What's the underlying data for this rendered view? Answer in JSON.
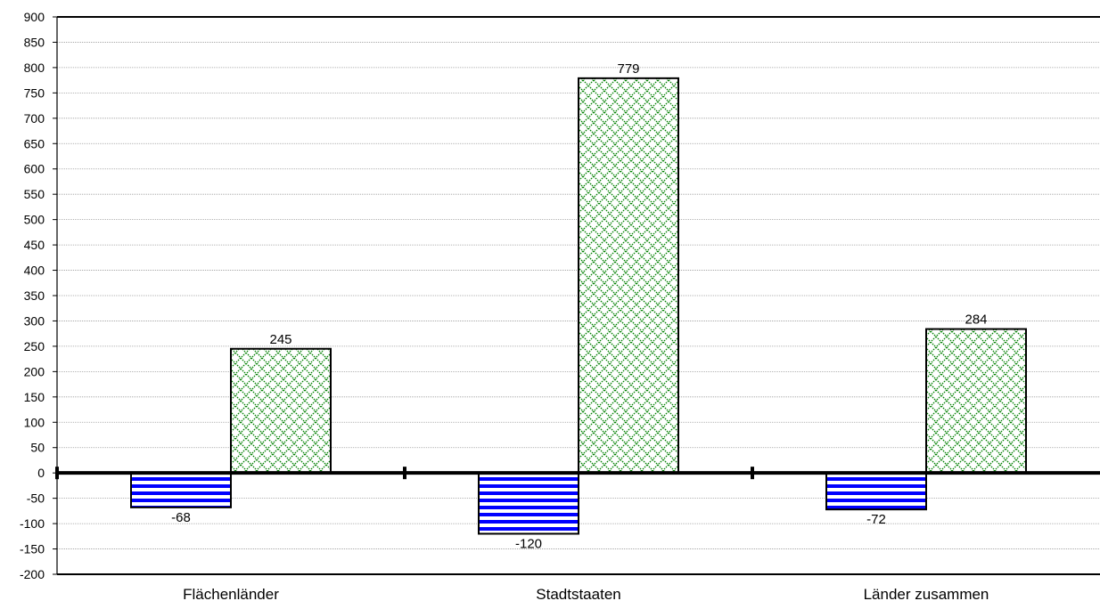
{
  "chart_data": {
    "type": "bar",
    "title": "",
    "xlabel": "",
    "ylabel": "",
    "categories": [
      "Flächenländer",
      "Stadtstaaten",
      "Länder zusammen"
    ],
    "series": [
      {
        "values": [
          -68,
          -120,
          -72
        ],
        "color": "#0000ff",
        "pattern": "horizontal-stripes"
      },
      {
        "values": [
          245,
          779,
          284
        ],
        "color": "#008000",
        "pattern": "crosshatch-diamond"
      }
    ],
    "ylim": [
      -200,
      900
    ],
    "yticks": [
      900,
      850,
      800,
      750,
      700,
      650,
      600,
      550,
      500,
      450,
      400,
      350,
      300,
      250,
      200,
      150,
      100,
      50,
      0,
      -50,
      -100,
      -150,
      -200
    ],
    "grid": true,
    "legend": "none"
  }
}
